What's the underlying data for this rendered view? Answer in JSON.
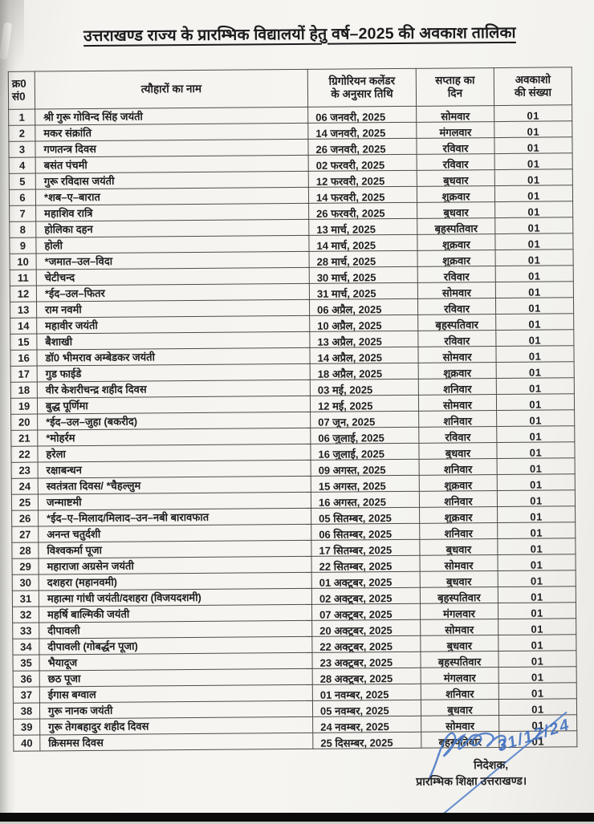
{
  "document": {
    "title": "उत्तराखण्ड राज्य के प्रारम्भिक विद्यालयों हेतु वर्ष–2025 की अवकाश तालिका",
    "table": {
      "headers": {
        "sn_line1": "क्र0",
        "sn_line2": "सं0",
        "name": "त्यौहारों का नाम",
        "date_line1": "ग्रिगोरियन कलेंडर",
        "date_line2": "के अनुसार तिथि",
        "day_line1": "सप्ताह का",
        "day_line2": "दिन",
        "count_line1": "अवकाशो",
        "count_line2": "की संख्या"
      },
      "rows": [
        {
          "sn": "1",
          "name": "श्री गुरू गोविन्द सिंह जयंती",
          "date": "06 जनवरी, 2025",
          "day": "सोमवार",
          "count": "01"
        },
        {
          "sn": "2",
          "name": "मकर संक्रांति",
          "date": "14 जनवरी, 2025",
          "day": "मंगलवार",
          "count": "01"
        },
        {
          "sn": "3",
          "name": "गणतन्त्र दिवस",
          "date": "26 जनवरी, 2025",
          "day": "रविवार",
          "count": "01"
        },
        {
          "sn": "4",
          "name": "बसंत पंचमी",
          "date": "02 फरवरी, 2025",
          "day": "रविवार",
          "count": "01"
        },
        {
          "sn": "5",
          "name": "गुरू रविदास जयंती",
          "date": "12 फरवरी, 2025",
          "day": "बुधवार",
          "count": "01"
        },
        {
          "sn": "6",
          "name": "*शब–ए–बारात",
          "date": "14 फरवरी, 2025",
          "day": "शुक्रवार",
          "count": "01"
        },
        {
          "sn": "7",
          "name": "महाशिव रात्रि",
          "date": "26 फरवरी, 2025",
          "day": "बुधवार",
          "count": "01"
        },
        {
          "sn": "8",
          "name": "होलिका दहन",
          "date": "13 मार्च, 2025",
          "day": "बृहस्पतिवार",
          "count": "01"
        },
        {
          "sn": "9",
          "name": "होली",
          "date": "14 मार्च, 2025",
          "day": "शुक्रवार",
          "count": "01"
        },
        {
          "sn": "10",
          "name": "*जमात–उल–विदा",
          "date": "28 मार्च, 2025",
          "day": "शुक्रवार",
          "count": "01"
        },
        {
          "sn": "11",
          "name": "चेटीचन्द",
          "date": "30 मार्च, 2025",
          "day": "रविवार",
          "count": "01"
        },
        {
          "sn": "12",
          "name": "*ईद–उल–फितर",
          "date": "31 मार्च, 2025",
          "day": "सोमवार",
          "count": "01"
        },
        {
          "sn": "13",
          "name": "राम नवमी",
          "date": "06 अप्रैल, 2025",
          "day": "रविवार",
          "count": "01"
        },
        {
          "sn": "14",
          "name": "महावीर जयंती",
          "date": "10 अप्रैल, 2025",
          "day": "बृहस्पतिवार",
          "count": "01"
        },
        {
          "sn": "15",
          "name": "बैशाखी",
          "date": "13 अप्रैल, 2025",
          "day": "रविवार",
          "count": "01"
        },
        {
          "sn": "16",
          "name": "डॉ0 भीमराव अम्बेडकर जयंती",
          "date": "14 अप्रैल, 2025",
          "day": "सोमवार",
          "count": "01"
        },
        {
          "sn": "17",
          "name": "गुड फाईडे",
          "date": "18 अप्रैल, 2025",
          "day": "शुक्रवार",
          "count": "01"
        },
        {
          "sn": "18",
          "name": "वीर केशरीचन्द्र शहीद दिवस",
          "date": "03 मई, 2025",
          "day": "शनिवार",
          "count": "01"
        },
        {
          "sn": "19",
          "name": "बुद्ध पूर्णिमा",
          "date": "12 मई, 2025",
          "day": "सोमवार",
          "count": "01"
        },
        {
          "sn": "20",
          "name": "*ईद–उल–जुहा (बकरीद)",
          "date": "07 जून, 2025",
          "day": "शनिवार",
          "count": "01"
        },
        {
          "sn": "21",
          "name": "*मोहर्रम",
          "date": "06 जुलाई, 2025",
          "day": "रविवार",
          "count": "01"
        },
        {
          "sn": "22",
          "name": "हरेला",
          "date": "16 जुलाई, 2025",
          "day": "बुधवार",
          "count": "01"
        },
        {
          "sn": "23",
          "name": "रक्षाबन्धन",
          "date": "09 अगस्त, 2025",
          "day": "शनिवार",
          "count": "01"
        },
        {
          "sn": "24",
          "name": "स्वतंत्रता दिवस/ *चैहल्लुम",
          "date": "15 अगस्त, 2025",
          "day": "शुक्रवार",
          "count": "01"
        },
        {
          "sn": "25",
          "name": "जन्माष्टमी",
          "date": "16 अगस्त, 2025",
          "day": "शनिवार",
          "count": "01"
        },
        {
          "sn": "26",
          "name": "*ईद–ए–मिलाद/मिलाद–उन–नबी बारावफात",
          "date": "05 सितम्बर, 2025",
          "day": "शुक्रवार",
          "count": "01"
        },
        {
          "sn": "27",
          "name": "अनन्त चतुर्दशी",
          "date": "06 सितम्बर, 2025",
          "day": "शनिवार",
          "count": "01"
        },
        {
          "sn": "28",
          "name": "विश्वकर्मा पूजा",
          "date": "17 सितम्बर, 2025",
          "day": "बुधवार",
          "count": "01"
        },
        {
          "sn": "29",
          "name": "महाराजा अग्रसेन जयंती",
          "date": "22 सितम्बर, 2025",
          "day": "सोमवार",
          "count": "01"
        },
        {
          "sn": "30",
          "name": "दशहरा (महानवमी)",
          "date": "01 अक्टूबर, 2025",
          "day": "बुधवार",
          "count": "01"
        },
        {
          "sn": "31",
          "name": "महात्मा गांधी जयंती/दशहरा (विजयदशमी)",
          "date": "02 अक्टूबर, 2025",
          "day": "बृहस्पतिवार",
          "count": "01"
        },
        {
          "sn": "32",
          "name": "महर्षि बाल्मिकी जयंती",
          "date": "07 अक्टूबर, 2025",
          "day": "मंगलवार",
          "count": "01"
        },
        {
          "sn": "33",
          "name": "दीपावली",
          "date": "20 अक्टूबर, 2025",
          "day": "सोमवार",
          "count": "01"
        },
        {
          "sn": "34",
          "name": "दीपावली (गोबर्द्धन पूजा)",
          "date": "22 अक्टूबर, 2025",
          "day": "बुधवार",
          "count": "01"
        },
        {
          "sn": "35",
          "name": "भैयादूज",
          "date": "23 अक्टूबर, 2025",
          "day": "बृहस्पतिवार",
          "count": "01"
        },
        {
          "sn": "36",
          "name": "छठ पूजा",
          "date": "28 अक्टूबर, 2025",
          "day": "मंगलवार",
          "count": "01"
        },
        {
          "sn": "37",
          "name": "ईगास बग्वाल",
          "date": "01 नवम्बर, 2025",
          "day": "शनिवार",
          "count": "01"
        },
        {
          "sn": "38",
          "name": "गुरू नानक जयंती",
          "date": "05 नवम्बर, 2025",
          "day": "बुधवार",
          "count": "01"
        },
        {
          "sn": "39",
          "name": "गुरू तेगबहादुर शहीद दिवस",
          "date": "24 नवम्बर, 2025",
          "day": "सोमवार",
          "count": "01"
        },
        {
          "sn": "40",
          "name": "क्रिसमस दिवस",
          "date": "25 दिसम्बर, 2025",
          "day": "बृहस्पतिवार",
          "count": "01"
        }
      ]
    },
    "signature": {
      "designation": "निदेशक,",
      "department": "प्रारम्भिक शिक्षा उत्तराखण्ड।",
      "handwritten_date": "31/12/24",
      "ink_color": "#3f6fc0"
    }
  }
}
